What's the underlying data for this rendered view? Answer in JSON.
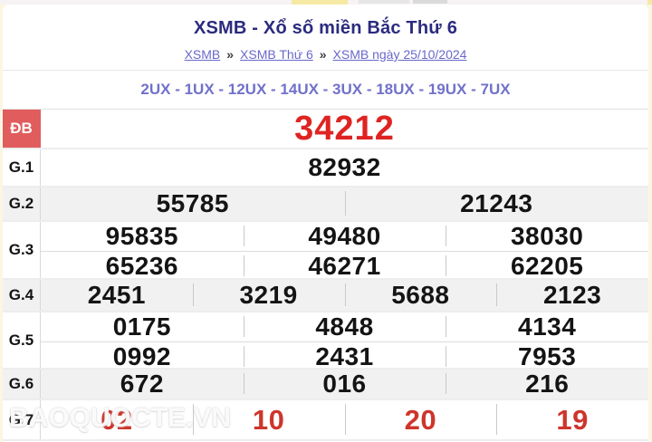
{
  "header": {
    "title": "XSMB - Xổ số miền Bắc Thứ 6",
    "breadcrumb_separator": "»",
    "breadcrumb": [
      {
        "label": "XSMB"
      },
      {
        "label": "XSMB Thứ 6"
      },
      {
        "label": "XSMB ngày 25/10/2024"
      }
    ]
  },
  "ux_line": "2UX - 1UX - 12UX - 14UX - 3UX - 18UX - 19UX - 7UX",
  "results": {
    "rows": [
      {
        "key": "db",
        "label": "ĐB",
        "type": "special",
        "lines": [
          [
            "34212"
          ]
        ]
      },
      {
        "key": "g1",
        "label": "G.1",
        "type": "normal",
        "lines": [
          [
            "82932"
          ]
        ]
      },
      {
        "key": "g2",
        "label": "G.2",
        "type": "alt",
        "lines": [
          [
            "55785",
            "21243"
          ]
        ]
      },
      {
        "key": "g3",
        "label": "G.3",
        "type": "normal",
        "lines": [
          [
            "95835",
            "49480",
            "38030"
          ],
          [
            "65236",
            "46271",
            "62205"
          ]
        ]
      },
      {
        "key": "g4",
        "label": "G.4",
        "type": "alt",
        "lines": [
          [
            "2451",
            "3219",
            "5688",
            "2123"
          ]
        ]
      },
      {
        "key": "g5",
        "label": "G.5",
        "type": "normal",
        "lines": [
          [
            "0175",
            "4848",
            "4134"
          ],
          [
            "0992",
            "2431",
            "7953"
          ]
        ]
      },
      {
        "key": "g6",
        "label": "G.6",
        "type": "alt",
        "lines": [
          [
            "672",
            "016",
            "216"
          ]
        ]
      },
      {
        "key": "g7",
        "label": "G.7",
        "type": "redrow",
        "lines": [
          [
            "02",
            "10",
            "20",
            "19"
          ]
        ]
      }
    ]
  },
  "watermark": "BAOQUOCTE.VN",
  "colors": {
    "title_navy": "#2b2b7f",
    "link_purple": "#6868cc",
    "ux_purple": "#7171ca",
    "special_label_bg": "#e15d5d",
    "special_number_red": "#de2422",
    "g7_number_red": "#ce352c",
    "alt_row_bg": "#f1f1f2"
  }
}
